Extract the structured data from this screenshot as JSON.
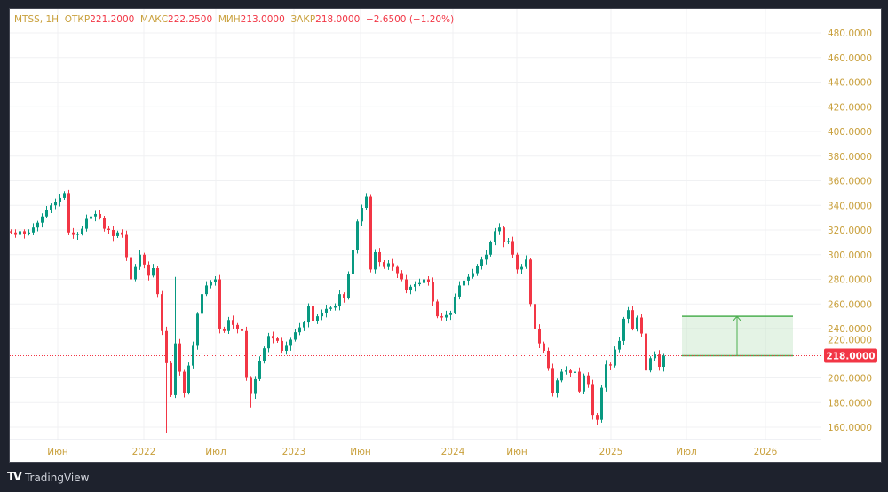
{
  "legend": {
    "symbol": "MTSS, 1H",
    "open_label": "ОТКР",
    "open": "221.2000",
    "high_label": "МАКС",
    "high": "222.2500",
    "low_label": "МИН",
    "low": "213.0000",
    "close_label": "ЗАКР",
    "close": "218.0000",
    "change": "−2.6500 (−1.20%)"
  },
  "footer": {
    "brand": "TradingView"
  },
  "colors": {
    "up": "#089981",
    "down": "#f23645",
    "axis_text": "#c9a03c",
    "target_box": "#4caf50"
  },
  "chart_data": {
    "type": "candlestick",
    "ylim": [
      150,
      490
    ],
    "y_ticks": [
      "160.0000",
      "180.0000",
      "200.0000",
      "220.0000",
      "240.0000",
      "260.0000",
      "280.0000",
      "300.0000",
      "320.0000",
      "340.0000",
      "360.0000",
      "380.0000",
      "400.0000",
      "420.0000",
      "440.0000",
      "460.0000",
      "480.0000"
    ],
    "x_ticks": [
      "Июн",
      "2022",
      "Июл",
      "2023",
      "Июн",
      "2024",
      "Июн",
      "2025",
      "Июл",
      "2026"
    ],
    "last_price": 218,
    "last_price_label": "218.0000",
    "target_range": {
      "from": 218,
      "to": 250
    },
    "closes": [
      318,
      316,
      319,
      317,
      318,
      322,
      326,
      331,
      336,
      340,
      343,
      346,
      350,
      318,
      316,
      317,
      321,
      329,
      331,
      333,
      330,
      321,
      320,
      315,
      318,
      316,
      298,
      280,
      290,
      300,
      292,
      283,
      289,
      268,
      238,
      212,
      186,
      228,
      205,
      188,
      210,
      226,
      252,
      268,
      275,
      278,
      280,
      240,
      238,
      247,
      243,
      240,
      238,
      200,
      187,
      199,
      214,
      224,
      234,
      232,
      230,
      222,
      226,
      231,
      237,
      241,
      245,
      258,
      246,
      250,
      253,
      256,
      257,
      258,
      268,
      265,
      284,
      304,
      327,
      338,
      347,
      288,
      302,
      294,
      290,
      293,
      290,
      285,
      280,
      271,
      274,
      276,
      277,
      280,
      278,
      262,
      250,
      249,
      251,
      253,
      266,
      275,
      279,
      282,
      285,
      291,
      296,
      300,
      310,
      319,
      322,
      310,
      311,
      300,
      288,
      290,
      296,
      260,
      240,
      228,
      222,
      208,
      188,
      198,
      205,
      206,
      204,
      205,
      189,
      202,
      195,
      170,
      166,
      192,
      211,
      210,
      223,
      230,
      248,
      255,
      240,
      249,
      236,
      206,
      216,
      219,
      209,
      218
    ],
    "wick_extremes": [
      {
        "i": 35,
        "low": 155
      },
      {
        "i": 37,
        "high": 282
      },
      {
        "i": 54,
        "low": 176
      },
      {
        "i": 132,
        "low": 162
      },
      {
        "i": 80,
        "high": 350
      }
    ]
  }
}
